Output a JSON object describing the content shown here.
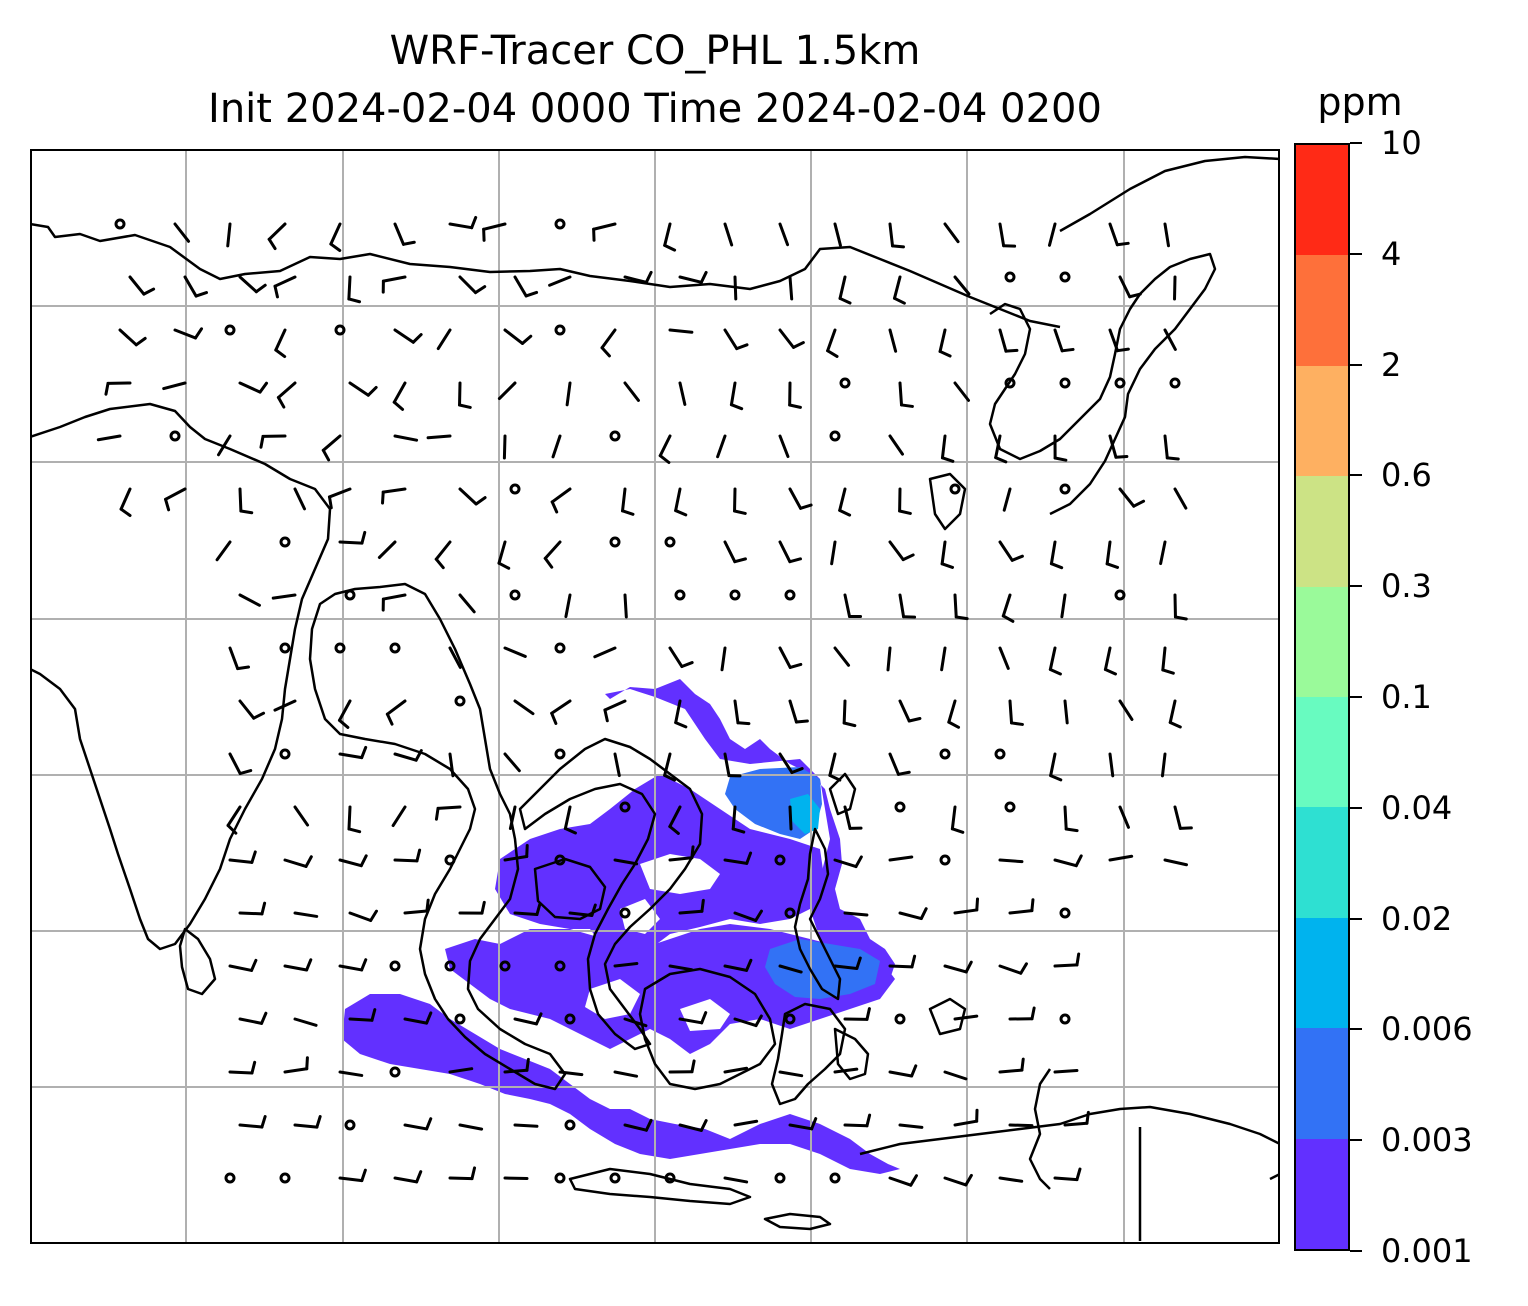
{
  "title_line1": "WRF-Tracer CO_PHL 1.5km",
  "title_line2": "Init 2024-02-04 0000 Time 2024-02-04 0200",
  "colorbar": {
    "units": "ppm",
    "tick_labels": [
      "0.001",
      "0.003",
      "0.006",
      "0.02",
      "0.04",
      "0.1",
      "0.3",
      "0.6",
      "2",
      "4",
      "10"
    ],
    "colors": [
      "#6230ff",
      "#3272f5",
      "#00b3ee",
      "#2ee0d2",
      "#68fbc0",
      "#9afa9a",
      "#cce385",
      "#feb061",
      "#fe703a",
      "#ff2a16"
    ]
  },
  "map": {
    "grid": true,
    "land_outline_color": "#000000",
    "gridline_color": "#b0b0b0",
    "tracer_fill_color": "#6230ff",
    "tracer_high_color": "#3272f5"
  }
}
